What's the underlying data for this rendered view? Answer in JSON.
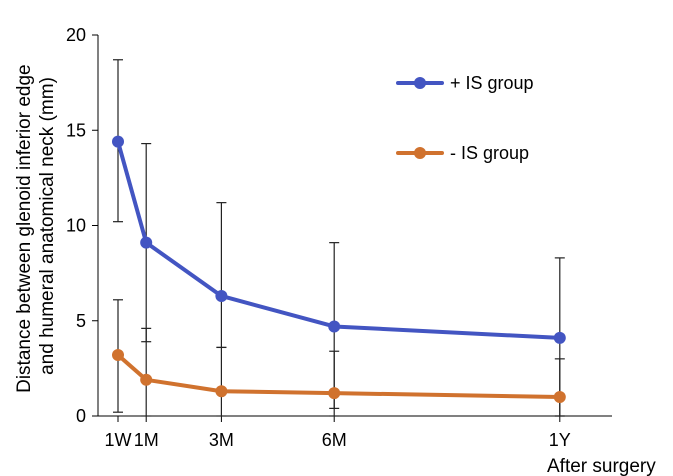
{
  "chart_data": {
    "type": "line",
    "x_labels": [
      "1W",
      "1M",
      "3M",
      "6M",
      "1Y"
    ],
    "x_months": [
      0.25,
      1,
      3,
      6,
      12
    ],
    "xlabel": "After surgery",
    "ylabel_line1": "Distance between glenoid inferior edge",
    "ylabel_line2": "and humeral anatomical neck (mm)",
    "ylim": [
      0,
      20
    ],
    "yticks": [
      0,
      5,
      10,
      15,
      20
    ],
    "legend_position": "top-right",
    "grid": false,
    "series": [
      {
        "name": "+ IS group",
        "color": "#4355c2",
        "values": [
          14.4,
          9.1,
          6.3,
          4.7,
          4.1
        ],
        "err_high": [
          18.7,
          14.3,
          11.2,
          9.1,
          8.3
        ],
        "err_low": [
          10.2,
          3.9,
          3.6,
          0.4,
          0.0
        ]
      },
      {
        "name": "- IS group",
        "color": "#d0722e",
        "values": [
          3.2,
          1.9,
          1.3,
          1.2,
          1.0
        ],
        "err_high": [
          6.1,
          4.6,
          3.6,
          3.4,
          3.0
        ],
        "err_low": [
          0.2,
          0.0,
          0.0,
          0.0,
          0.0
        ]
      }
    ]
  }
}
